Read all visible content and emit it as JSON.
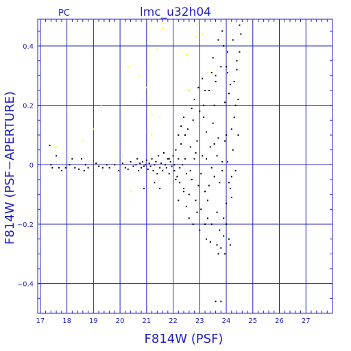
{
  "header": {
    "corner_label": "PC",
    "title": "lmc_u32h04"
  },
  "colors": {
    "axis": "#2020c0",
    "grid": "#2020c0",
    "text": "#2020c0",
    "points_main": "#000000",
    "points_secondary": "#ffff00"
  },
  "chart_data": {
    "type": "scatter",
    "title": "lmc_u32h04",
    "xlabel": "F814W (PSF)",
    "ylabel": "F814W (PSF−APERTURE)",
    "xlim": [
      16.9,
      28.0
    ],
    "ylim": [
      -0.5,
      0.49
    ],
    "xticks": [
      17,
      18,
      19,
      20,
      21,
      22,
      23,
      24,
      25,
      26,
      27
    ],
    "xtick_labels": [
      "17",
      "18",
      "19",
      "20",
      "21",
      "22",
      "23",
      "24",
      "25",
      "26",
      "27"
    ],
    "yticks": [
      -0.4,
      -0.2,
      0,
      0.2,
      0.4
    ],
    "ytick_labels": [
      "−0.4",
      "−0.2",
      "0",
      "0.2",
      "0.4"
    ],
    "grid": true,
    "series": [
      {
        "color": "#000000",
        "points": [
          [
            17.35,
            0.065
          ],
          [
            17.4,
            0.0
          ],
          [
            17.45,
            -0.01
          ],
          [
            17.6,
            0.03
          ],
          [
            17.7,
            -0.01
          ],
          [
            17.8,
            -0.02
          ],
          [
            17.95,
            -0.01
          ],
          [
            18.1,
            0.0
          ],
          [
            18.2,
            0.02
          ],
          [
            18.3,
            -0.01
          ],
          [
            18.45,
            -0.015
          ],
          [
            18.55,
            0.02
          ],
          [
            18.65,
            -0.02
          ],
          [
            18.7,
            0.0
          ],
          [
            18.8,
            -0.01
          ],
          [
            19.1,
            0.005
          ],
          [
            19.2,
            -0.005
          ],
          [
            19.35,
            -0.01
          ],
          [
            19.5,
            0.0
          ],
          [
            19.6,
            -0.01
          ],
          [
            19.8,
            0.0
          ],
          [
            19.95,
            -0.02
          ],
          [
            20.1,
            0.005
          ],
          [
            20.2,
            -0.01
          ],
          [
            20.3,
            -0.015
          ],
          [
            20.4,
            0.01
          ],
          [
            20.5,
            -0.005
          ],
          [
            20.6,
            0.0
          ],
          [
            20.65,
            0.02
          ],
          [
            20.7,
            -0.02
          ],
          [
            20.75,
            0.005
          ],
          [
            20.8,
            -0.01
          ],
          [
            20.85,
            0.01
          ],
          [
            20.9,
            -0.005
          ],
          [
            20.95,
            0.0
          ],
          [
            21.0,
            0.015
          ],
          [
            21.05,
            -0.015
          ],
          [
            21.1,
            0.005
          ],
          [
            21.15,
            -0.005
          ],
          [
            21.2,
            0.02
          ],
          [
            21.25,
            -0.02
          ],
          [
            21.3,
            0.0
          ],
          [
            21.35,
            0.01
          ],
          [
            21.4,
            -0.03
          ],
          [
            21.45,
            0.03
          ],
          [
            21.5,
            -0.01
          ],
          [
            21.55,
            0.005
          ],
          [
            21.6,
            -0.02
          ],
          [
            21.65,
            0.04
          ],
          [
            21.7,
            0.0
          ],
          [
            21.75,
            -0.01
          ],
          [
            21.8,
            0.02
          ],
          [
            21.85,
            -0.03
          ],
          [
            21.9,
            0.01
          ],
          [
            21.95,
            -0.005
          ],
          [
            22.0,
            0.03
          ],
          [
            22.05,
            -0.02
          ],
          [
            22.1,
            0.05
          ],
          [
            22.15,
            -0.04
          ],
          [
            22.2,
            0.02
          ],
          [
            22.25,
            -0.06
          ],
          [
            22.3,
            0.07
          ],
          [
            22.35,
            0.0
          ],
          [
            22.4,
            -0.08
          ],
          [
            22.45,
            0.1
          ],
          [
            22.5,
            -0.03
          ],
          [
            22.55,
            0.12
          ],
          [
            22.6,
            -0.1
          ],
          [
            22.65,
            0.06
          ],
          [
            22.7,
            -0.05
          ],
          [
            22.75,
            0.15
          ],
          [
            22.8,
            0.02
          ],
          [
            22.85,
            -0.12
          ],
          [
            22.9,
            0.08
          ],
          [
            22.95,
            -0.07
          ],
          [
            23.0,
            0.18
          ],
          [
            23.05,
            -0.15
          ],
          [
            23.1,
            0.03
          ],
          [
            23.15,
            0.2
          ],
          [
            23.2,
            -0.09
          ],
          [
            23.25,
            0.11
          ],
          [
            23.3,
            -0.18
          ],
          [
            23.35,
            0.25
          ],
          [
            23.4,
            0.06
          ],
          [
            23.45,
            -0.2
          ],
          [
            23.5,
            0.14
          ],
          [
            23.55,
            -0.04
          ],
          [
            23.6,
            0.3
          ],
          [
            23.65,
            -0.16
          ],
          [
            23.7,
            0.09
          ],
          [
            23.75,
            -0.22
          ],
          [
            23.8,
            0.33
          ],
          [
            23.85,
            0.01
          ],
          [
            23.9,
            -0.24
          ],
          [
            23.95,
            0.21
          ],
          [
            24.0,
            -0.13
          ],
          [
            24.05,
            0.38
          ],
          [
            24.1,
            -0.06
          ],
          [
            24.15,
            0.27
          ],
          [
            24.2,
            -0.11
          ],
          [
            24.25,
            0.42
          ],
          [
            24.3,
            0.16
          ],
          [
            24.35,
            -0.02
          ],
          [
            24.4,
            0.35
          ],
          [
            24.45,
            0.22
          ],
          [
            24.5,
            0.47
          ],
          [
            24.55,
            0.44
          ],
          [
            22.2,
            -0.12
          ],
          [
            22.4,
            0.16
          ],
          [
            22.6,
            -0.18
          ],
          [
            22.8,
            0.22
          ],
          [
            23.0,
            -0.22
          ],
          [
            23.2,
            0.25
          ],
          [
            23.4,
            -0.26
          ],
          [
            23.6,
            0.28
          ],
          [
            23.8,
            -0.28
          ],
          [
            24.0,
            0.33
          ],
          [
            24.1,
            -0.25
          ],
          [
            23.9,
            0.4
          ],
          [
            23.7,
            -0.3
          ],
          [
            23.5,
            0.36
          ],
          [
            23.3,
            -0.12
          ],
          [
            23.1,
            0.29
          ],
          [
            22.9,
            -0.16
          ],
          [
            22.7,
            0.19
          ],
          [
            22.5,
            -0.14
          ],
          [
            22.3,
            0.13
          ],
          [
            22.1,
            -0.05
          ],
          [
            23.95,
            -0.3
          ],
          [
            24.15,
            -0.27
          ],
          [
            23.85,
            0.45
          ],
          [
            24.05,
            0.31
          ],
          [
            24.25,
            0.05
          ],
          [
            24.35,
            0.2
          ],
          [
            24.45,
            0.1
          ],
          [
            24.2,
            0.12
          ],
          [
            23.65,
            -0.27
          ],
          [
            23.55,
            0.2
          ],
          [
            23.45,
            0.31
          ],
          [
            23.25,
            -0.25
          ],
          [
            23.15,
            0.16
          ],
          [
            22.95,
            0.26
          ],
          [
            22.75,
            -0.2
          ],
          [
            23.8,
            -0.46
          ],
          [
            23.6,
            -0.46
          ],
          [
            24.0,
            0.1
          ],
          [
            24.1,
            0.24
          ],
          [
            23.7,
            0.42
          ],
          [
            23.9,
            -0.18
          ],
          [
            22.65,
            -0.02
          ],
          [
            22.85,
            0.04
          ],
          [
            23.05,
            -0.03
          ],
          [
            23.25,
            0.02
          ],
          [
            23.45,
            -0.01
          ],
          [
            23.65,
            0.03
          ],
          [
            23.85,
            -0.02
          ],
          [
            24.05,
            0.01
          ],
          [
            24.2,
            -0.04
          ],
          [
            22.45,
            0.02
          ],
          [
            22.25,
            -0.01
          ],
          [
            22.05,
            0.0
          ],
          [
            21.85,
            0.02
          ],
          [
            23.35,
            -0.07
          ],
          [
            23.55,
            0.07
          ],
          [
            23.75,
            -0.06
          ],
          [
            23.95,
            0.08
          ],
          [
            24.15,
            -0.08
          ],
          [
            24.3,
            0.28
          ],
          [
            24.4,
            0.32
          ],
          [
            24.5,
            0.38
          ],
          [
            24.0,
            -0.2
          ],
          [
            23.2,
            -0.2
          ],
          [
            22.6,
            0.25
          ],
          [
            22.4,
            -0.09
          ],
          [
            22.2,
            0.1
          ],
          [
            21.5,
            -0.08
          ],
          [
            21.3,
            -0.06
          ],
          [
            20.9,
            -0.08
          ]
        ]
      },
      {
        "color": "#ffff00",
        "points": [
          [
            17.6,
            0.06
          ],
          [
            18.6,
            0.08
          ],
          [
            19.0,
            0.12
          ],
          [
            19.3,
            0.2
          ],
          [
            20.3,
            0.33
          ],
          [
            20.7,
            0.3
          ],
          [
            20.9,
            0.22
          ],
          [
            21.0,
            0.26
          ],
          [
            21.2,
            0.17
          ],
          [
            21.4,
            0.39
          ],
          [
            21.5,
            0.16
          ],
          [
            22.9,
            0.43
          ],
          [
            23.3,
            0.31
          ],
          [
            22.5,
            0.37
          ],
          [
            20.4,
            -0.09
          ],
          [
            20.1,
            0.03
          ],
          [
            19.8,
            0.01
          ],
          [
            21.2,
            0.1
          ],
          [
            22.9,
            0.47
          ],
          [
            23.1,
            0.44
          ],
          [
            21.6,
            0.46
          ],
          [
            22.6,
            0.25
          ]
        ]
      }
    ]
  }
}
